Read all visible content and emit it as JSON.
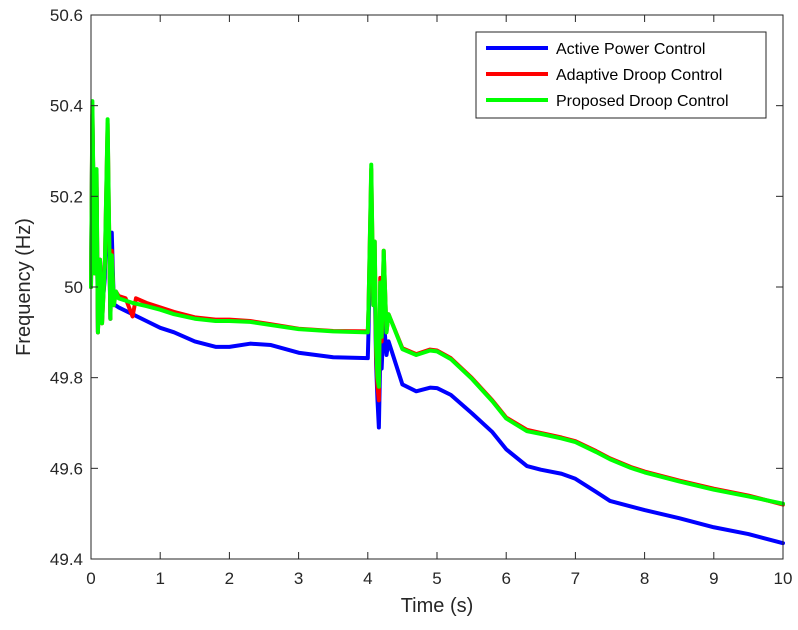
{
  "chart_data": {
    "type": "line",
    "title": "",
    "xlabel": "Time (s)",
    "ylabel": "Frequency (Hz)",
    "xlim": [
      0,
      10
    ],
    "ylim": [
      49.4,
      50.6
    ],
    "grid": false,
    "legend_position": "top-right",
    "x_ticks": [
      0,
      1,
      2,
      3,
      4,
      5,
      6,
      7,
      8,
      9,
      10
    ],
    "x_tick_labels": [
      "0",
      "1",
      "2",
      "3",
      "4",
      "5",
      "6",
      "7",
      "8",
      "9",
      "10"
    ],
    "y_ticks": [
      49.4,
      49.6,
      49.8,
      50.0,
      50.2,
      50.4,
      50.6
    ],
    "y_tick_labels": [
      "49.4",
      "49.6",
      "49.8",
      "50",
      "50.2",
      "50.4",
      "50.6"
    ],
    "series": [
      {
        "name": "Active Power Control",
        "color": "#0000ff",
        "x": [
          0,
          0.02,
          0.05,
          0.08,
          0.1,
          0.13,
          0.16,
          0.2,
          0.24,
          0.28,
          0.3,
          0.33,
          0.35,
          0.4,
          0.6,
          0.8,
          1.0,
          1.2,
          1.5,
          1.8,
          2.0,
          2.3,
          2.6,
          3.0,
          3.5,
          4.0,
          4.01,
          4.05,
          4.08,
          4.1,
          4.12,
          4.14,
          4.16,
          4.18,
          4.2,
          4.23,
          4.27,
          4.3,
          4.5,
          4.7,
          4.9,
          5.0,
          5.2,
          5.5,
          5.8,
          6.0,
          6.3,
          6.5,
          6.8,
          7.0,
          7.3,
          7.5,
          7.8,
          8.0,
          8.5,
          9.0,
          9.5,
          10.0
        ],
        "y": [
          50.0,
          50.38,
          50.05,
          50.22,
          49.9,
          50.06,
          49.95,
          50.02,
          50.3,
          49.93,
          50.12,
          49.96,
          49.96,
          49.955,
          49.94,
          49.925,
          49.91,
          49.9,
          49.88,
          49.868,
          49.868,
          49.875,
          49.872,
          49.855,
          49.845,
          49.843,
          49.9,
          50.2,
          49.96,
          50.02,
          49.83,
          49.75,
          49.69,
          49.85,
          49.82,
          49.93,
          49.85,
          49.88,
          49.785,
          49.77,
          49.778,
          49.777,
          49.762,
          49.722,
          49.68,
          49.642,
          49.605,
          49.597,
          49.588,
          49.577,
          49.548,
          49.528,
          49.516,
          49.508,
          49.49,
          49.47,
          49.455,
          49.435
        ]
      },
      {
        "name": "Adaptive Droop Control",
        "color": "#ff0000",
        "x": [
          0,
          0.02,
          0.05,
          0.08,
          0.1,
          0.13,
          0.16,
          0.2,
          0.24,
          0.28,
          0.3,
          0.33,
          0.36,
          0.4,
          0.5,
          0.6,
          0.65,
          0.8,
          1.0,
          1.2,
          1.5,
          1.8,
          2.0,
          2.3,
          2.6,
          3.0,
          3.5,
          4.0,
          4.01,
          4.05,
          4.08,
          4.1,
          4.12,
          4.14,
          4.16,
          4.18,
          4.2,
          4.23,
          4.27,
          4.3,
          4.5,
          4.7,
          4.9,
          5.0,
          5.2,
          5.5,
          5.8,
          6.0,
          6.3,
          6.5,
          6.8,
          7.0,
          7.3,
          7.5,
          7.8,
          8.0,
          8.5,
          9.0,
          9.5,
          10.0
        ],
        "y": [
          50.0,
          50.4,
          50.03,
          50.25,
          49.9,
          50.06,
          49.92,
          50.05,
          50.36,
          49.93,
          50.08,
          49.96,
          49.99,
          49.98,
          49.975,
          49.935,
          49.975,
          49.965,
          49.955,
          49.945,
          49.933,
          49.928,
          49.928,
          49.925,
          49.918,
          49.908,
          49.903,
          49.902,
          49.95,
          50.26,
          49.96,
          50.1,
          49.85,
          49.78,
          49.75,
          50.02,
          49.88,
          50.08,
          49.9,
          49.94,
          49.865,
          49.852,
          49.862,
          49.86,
          49.843,
          49.8,
          49.75,
          49.712,
          49.685,
          49.678,
          49.668,
          49.66,
          49.638,
          49.622,
          49.603,
          49.593,
          49.573,
          49.555,
          49.54,
          49.52
        ]
      },
      {
        "name": "Proposed Droop Control",
        "color": "#00ff00",
        "x": [
          0,
          0.02,
          0.05,
          0.08,
          0.1,
          0.13,
          0.16,
          0.2,
          0.24,
          0.28,
          0.3,
          0.33,
          0.36,
          0.4,
          0.5,
          0.6,
          0.8,
          1.0,
          1.2,
          1.5,
          1.8,
          2.0,
          2.3,
          2.6,
          3.0,
          3.5,
          4.0,
          4.01,
          4.05,
          4.08,
          4.1,
          4.12,
          4.14,
          4.16,
          4.18,
          4.2,
          4.23,
          4.27,
          4.3,
          4.5,
          4.7,
          4.9,
          5.0,
          5.2,
          5.5,
          5.8,
          6.0,
          6.3,
          6.5,
          6.8,
          7.0,
          7.3,
          7.5,
          7.8,
          8.0,
          8.5,
          9.0,
          9.5,
          10.0
        ],
        "y": [
          50.0,
          50.41,
          50.03,
          50.26,
          49.9,
          50.06,
          49.92,
          50.05,
          50.37,
          49.93,
          50.07,
          49.96,
          49.99,
          49.975,
          49.97,
          49.965,
          49.958,
          49.95,
          49.94,
          49.93,
          49.925,
          49.925,
          49.923,
          49.916,
          49.907,
          49.902,
          49.9,
          49.95,
          50.27,
          49.96,
          50.1,
          49.87,
          49.8,
          49.78,
          50.01,
          49.89,
          50.08,
          49.9,
          49.94,
          49.863,
          49.85,
          49.86,
          49.858,
          49.841,
          49.798,
          49.748,
          49.71,
          49.682,
          49.676,
          49.666,
          49.658,
          49.636,
          49.62,
          49.601,
          49.591,
          49.571,
          49.553,
          49.538,
          49.522
        ]
      }
    ]
  }
}
